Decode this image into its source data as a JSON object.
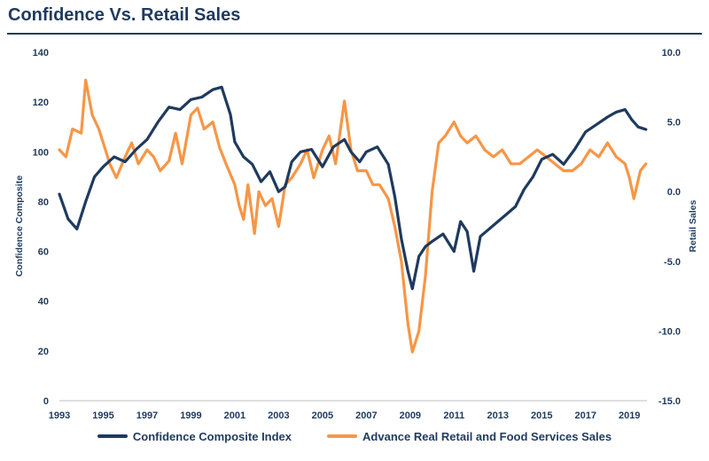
{
  "title": "Confidence Vs. Retail Sales",
  "chart_data": {
    "type": "line",
    "title": "Confidence Vs. Retail Sales",
    "xlabel": "",
    "ylabel_left": "Confidence Composite",
    "ylabel_right": "Retail Sales",
    "xlim": [
      1993,
      2019.8
    ],
    "ylim_left": [
      0,
      140
    ],
    "ylim_right": [
      -15,
      10
    ],
    "x_ticks": [
      "1993",
      "1995",
      "1997",
      "1999",
      "2001",
      "2003",
      "2005",
      "2007",
      "2009",
      "2011",
      "2013",
      "2015",
      "2017",
      "2019"
    ],
    "y_ticks_left": [
      "0",
      "20",
      "40",
      "60",
      "80",
      "100",
      "120",
      "140"
    ],
    "y_ticks_right": [
      "-15.0",
      "-10.0",
      "-5.0",
      "0.0",
      "5.0",
      "10.0"
    ],
    "grid": false,
    "legend": "bottom",
    "series": [
      {
        "name": "Confidence Composite Index",
        "axis": "left",
        "color": "#1f3a5f",
        "x": [
          1993,
          1993.4,
          1993.8,
          1994.2,
          1994.6,
          1995,
          1995.5,
          1996,
          1996.5,
          1997,
          1997.5,
          1998,
          1998.5,
          1999,
          1999.5,
          2000,
          2000.4,
          2000.8,
          2001,
          2001.4,
          2001.8,
          2002.2,
          2002.6,
          2003,
          2003.3,
          2003.6,
          2004,
          2004.5,
          2005,
          2005.5,
          2006,
          2006.3,
          2006.7,
          2007,
          2007.5,
          2008,
          2008.3,
          2008.6,
          2008.9,
          2009.1,
          2009.4,
          2009.7,
          2010,
          2010.5,
          2011,
          2011.3,
          2011.6,
          2011.9,
          2012.2,
          2012.6,
          2013,
          2013.4,
          2013.8,
          2014.2,
          2014.6,
          2015,
          2015.5,
          2016,
          2016.5,
          2017,
          2017.5,
          2018,
          2018.4,
          2018.8,
          2019.1,
          2019.4,
          2019.75
        ],
        "values": [
          83,
          73,
          69,
          80,
          90,
          94,
          98,
          96,
          101,
          105,
          112,
          118,
          117,
          121,
          122,
          125,
          126,
          115,
          104,
          98,
          95,
          88,
          92,
          84,
          86,
          96,
          100,
          101,
          94,
          102,
          105,
          100,
          96,
          100,
          102,
          95,
          82,
          65,
          52,
          45,
          58,
          62,
          64,
          67,
          60,
          72,
          68,
          52,
          66,
          69,
          72,
          75,
          78,
          85,
          90,
          97,
          99,
          95,
          101,
          108,
          111,
          114,
          116,
          117,
          113,
          110,
          109
        ]
      },
      {
        "name": "Advance Real Retail and Food Services Sales",
        "axis": "right",
        "color": "#f79646",
        "x": [
          1993,
          1993.3,
          1993.6,
          1994,
          1994.2,
          1994.5,
          1994.8,
          1995,
          1995.3,
          1995.6,
          1996,
          1996.3,
          1996.6,
          1997,
          1997.3,
          1997.6,
          1998,
          1998.3,
          1998.6,
          1999,
          1999.3,
          1999.6,
          2000,
          2000.3,
          2000.6,
          2001,
          2001.2,
          2001.4,
          2001.6,
          2001.9,
          2002.1,
          2002.4,
          2002.7,
          2003,
          2003.3,
          2003.6,
          2004,
          2004.3,
          2004.6,
          2005,
          2005.3,
          2005.6,
          2006,
          2006.3,
          2006.6,
          2007,
          2007.3,
          2007.6,
          2008,
          2008.3,
          2008.6,
          2008.9,
          2009.1,
          2009.4,
          2009.7,
          2010,
          2010.3,
          2010.6,
          2011,
          2011.3,
          2011.6,
          2012,
          2012.4,
          2012.8,
          2013.2,
          2013.6,
          2014,
          2014.4,
          2014.8,
          2015.2,
          2015.6,
          2016,
          2016.4,
          2016.8,
          2017.2,
          2017.6,
          2018,
          2018.4,
          2018.8,
          2019,
          2019.2,
          2019.5,
          2019.75
        ],
        "values": [
          3,
          2.5,
          4.5,
          4.2,
          8,
          5.5,
          4.5,
          3.5,
          2,
          1,
          2.5,
          3.5,
          2,
          3,
          2.5,
          1.5,
          2.2,
          4.2,
          2,
          5.5,
          6,
          4.5,
          5,
          3.2,
          2,
          0.5,
          -1,
          -2,
          0.5,
          -3,
          0,
          -1,
          -0.5,
          -2.5,
          0.5,
          1,
          2,
          3,
          1,
          3,
          4,
          2,
          6.5,
          3,
          1.5,
          1.5,
          0.5,
          0.5,
          -0.5,
          -2.5,
          -5,
          -9.5,
          -11.5,
          -10,
          -6,
          0,
          3.5,
          4,
          5,
          4,
          3.5,
          4,
          3,
          2.5,
          3,
          2,
          2,
          2.5,
          3,
          2.5,
          2,
          1.5,
          1.5,
          2,
          3,
          2.5,
          3.5,
          2.5,
          2,
          1,
          -0.5,
          1.5,
          2
        ]
      }
    ]
  }
}
